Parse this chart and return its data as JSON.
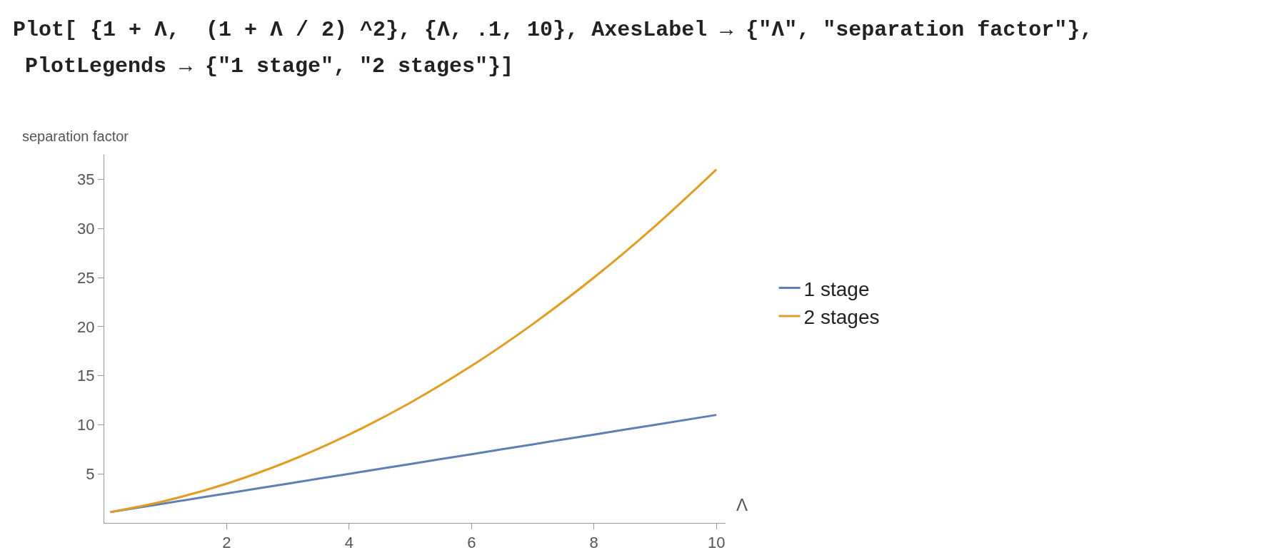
{
  "chart_data": {
    "type": "line",
    "xlabel": "Λ",
    "ylabel": "separation factor",
    "annotations": [
      "Plot[ {1 + Λ,  (1 + Λ / 2) ^2}, {Λ, .1, 10}, AxesLabel → {\"Λ\", \"separation factor\"},",
      "PlotLegends → {\"1 stage\", \"2 stages\"}]"
    ],
    "x": [
      0.1,
      1,
      2,
      3,
      4,
      5,
      6,
      7,
      8,
      9,
      10
    ],
    "series": [
      {
        "name": "1 stage",
        "color": "#5e81b5",
        "values": [
          1.1,
          2,
          3,
          4,
          5,
          6,
          7,
          8,
          9,
          10,
          11
        ]
      },
      {
        "name": "2 stages",
        "color": "#e19c24",
        "values": [
          1.1,
          2.25,
          4,
          6.25,
          9,
          12.25,
          16,
          20.25,
          25,
          30.25,
          36
        ]
      }
    ],
    "xlim": [
      0,
      10.15
    ],
    "ylim": [
      0,
      37.5
    ],
    "xticks": [
      2,
      4,
      6,
      8,
      10
    ],
    "yticks": [
      5,
      10,
      15,
      20,
      25,
      30,
      35
    ],
    "legend": "right",
    "marker": "none",
    "line_style": "solid"
  }
}
